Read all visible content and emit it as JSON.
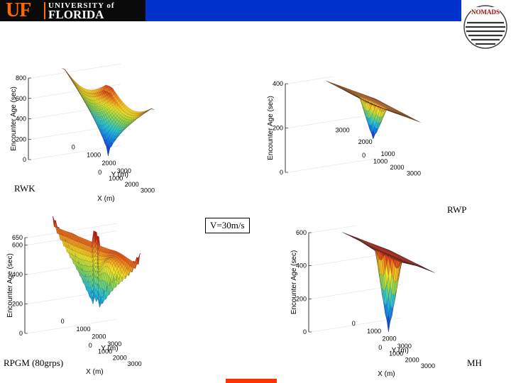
{
  "header": {
    "logo_uf": "UF",
    "logo_university": "UNIVERSITY of",
    "logo_florida": "FLORIDA",
    "nomads_text": "NOMADS",
    "bar_color": "#0033cc"
  },
  "speed_label": "V=30m/s",
  "colors": {
    "low": "#1a2fc8",
    "mid": "#f2e826",
    "high": "#8b1a10"
  },
  "chart_data": [
    {
      "type": "surface3d",
      "label": "RWK",
      "zlabel": "Encounter Age (sec)",
      "xlabel": "X (m)",
      "ylabel": "Y (m)",
      "xticks": [
        "0",
        "1000",
        "2000",
        "3000"
      ],
      "yticks": [
        "0",
        "1000",
        "2000",
        "3000"
      ],
      "zticks": [
        "0",
        "200",
        "400",
        "600",
        "800"
      ],
      "xlim": [
        0,
        3000
      ],
      "ylim": [
        0,
        3000
      ],
      "zlim": [
        0,
        800
      ],
      "shape": "cone",
      "center_value": 0,
      "edge_value": 700,
      "grid": true
    },
    {
      "type": "surface3d",
      "label": "RWP",
      "zlabel": "Encounter Age (sec)",
      "xlabel": "",
      "ylabel": "",
      "xticks": [
        "0",
        "1000",
        "2000",
        "3000"
      ],
      "yticks": [
        "3000",
        "2000",
        "1000"
      ],
      "zticks": [
        "0",
        "200",
        "400"
      ],
      "xlim": [
        0,
        3000
      ],
      "ylim": [
        0,
        3000
      ],
      "zlim": [
        0,
        400
      ],
      "shape": "well",
      "center_value": 0,
      "edge_value": 330,
      "grid": true
    },
    {
      "type": "surface3d",
      "label": "RPGM (80grps)",
      "zlabel": "Encounter Age (sec)",
      "xlabel": "X (m)",
      "ylabel": "Y (m)",
      "xticks": [
        "0",
        "1000",
        "2000",
        "3000"
      ],
      "yticks": [
        "0",
        "1000",
        "2000",
        "3000"
      ],
      "zticks": [
        "0",
        "200",
        "400",
        "600",
        "650"
      ],
      "xlim": [
        0,
        3000
      ],
      "ylim": [
        0,
        3000
      ],
      "zlim": [
        0,
        650
      ],
      "shape": "saddle",
      "center_value": 0,
      "edge_value": 650,
      "grid": true
    },
    {
      "type": "surface3d",
      "label": "MH",
      "zlabel": "Encounter Age (sec)",
      "xlabel": "X (m)",
      "ylabel": "Y (m)",
      "xticks": [
        "0",
        "1000",
        "2000",
        "3000"
      ],
      "yticks": [
        "0",
        "1000",
        "2000",
        "3000"
      ],
      "zticks": [
        "0",
        "200",
        "400",
        "600"
      ],
      "xlim": [
        0,
        3000
      ],
      "ylim": [
        0,
        3000
      ],
      "zlim": [
        0,
        600
      ],
      "shape": "well",
      "center_value": 0,
      "edge_value": 560,
      "grid": true
    }
  ]
}
